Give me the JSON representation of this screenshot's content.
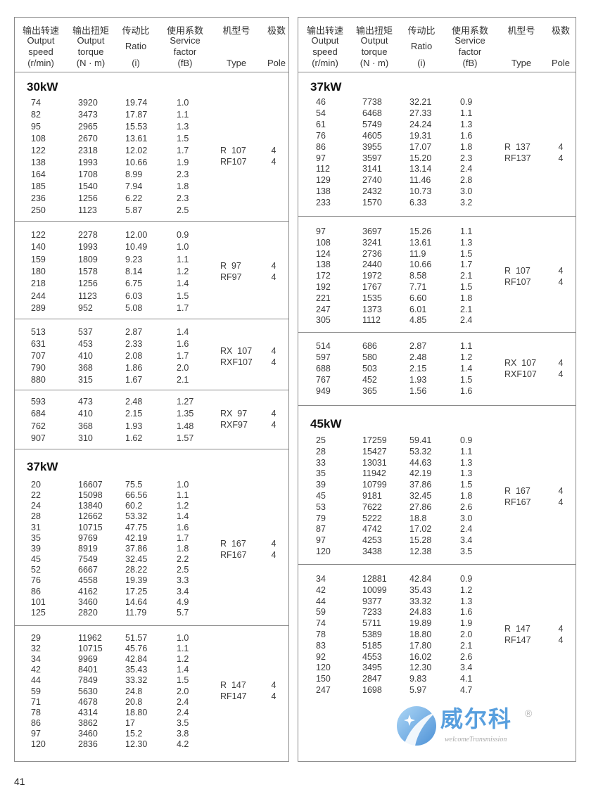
{
  "header": {
    "speed": {
      "cn": "输出转速",
      "en1": "Output",
      "en2": "speed",
      "unit": "(r/min)"
    },
    "torque": {
      "cn": "输出扭矩",
      "en1": "Output",
      "en2": "torque",
      "unit": "(N · m)"
    },
    "ratio": {
      "cn": "传动比",
      "en": "Ratio",
      "unit": "(i)"
    },
    "service": {
      "cn": "使用系数",
      "en1": "Service",
      "en2": "factor",
      "unit": "(fB)"
    },
    "type": {
      "cn": "机型号",
      "en": "Type"
    },
    "pole": {
      "cn": "极数",
      "en": "Pole"
    }
  },
  "panels": [
    {
      "blocks": [
        {
          "title": "30kW",
          "type": [
            "R  107",
            "RF107"
          ],
          "pole": [
            "4",
            "4"
          ],
          "rows": [
            [
              "74",
              "3920",
              "19.74",
              "1.0"
            ],
            [
              "82",
              "3473",
              "17.87",
              "1.1"
            ],
            [
              "95",
              "2965",
              "15.53",
              "1.3"
            ],
            [
              "108",
              "2670",
              "13.61",
              "1.5"
            ],
            [
              "122",
              "2318",
              "12.02",
              "1.7"
            ],
            [
              "138",
              "1993",
              "10.66",
              "1.9"
            ],
            [
              "164",
              "1708",
              "8.99",
              "2.3"
            ],
            [
              "185",
              "1540",
              "7.94",
              "1.8"
            ],
            [
              "236",
              "1256",
              "6.22",
              "2.3"
            ],
            [
              "250",
              "1123",
              "5.87",
              "2.5"
            ]
          ]
        },
        {
          "type": [
            "R  97",
            "RF97"
          ],
          "pole": [
            "4",
            "4"
          ],
          "rows": [
            [
              "122",
              "2278",
              "12.00",
              "0.9"
            ],
            [
              "140",
              "1993",
              "10.49",
              "1.0"
            ],
            [
              "159",
              "1809",
              "9.23",
              "1.1"
            ],
            [
              "180",
              "1578",
              "8.14",
              "1.2"
            ],
            [
              "218",
              "1256",
              "6.75",
              "1.4"
            ],
            [
              "244",
              "1123",
              "6.03",
              "1.5"
            ],
            [
              "289",
              "952",
              "5.08",
              "1.7"
            ]
          ]
        },
        {
          "type": [
            "RX  107",
            "RXF107"
          ],
          "pole": [
            "4",
            "4"
          ],
          "rows": [
            [
              "513",
              "537",
              "2.87",
              "1.4"
            ],
            [
              "631",
              "453",
              "2.33",
              "1.6"
            ],
            [
              "707",
              "410",
              "2.08",
              "1.7"
            ],
            [
              "790",
              "368",
              "1.86",
              "2.0"
            ],
            [
              "880",
              "315",
              "1.67",
              "2.1"
            ]
          ]
        },
        {
          "type": [
            "RX  97",
            "RXF97"
          ],
          "pole": [
            "4",
            "4"
          ],
          "rows": [
            [
              "593",
              "473",
              "2.48",
              "1.27"
            ],
            [
              "684",
              "410",
              "2.15",
              "1.35"
            ],
            [
              "762",
              "368",
              "1.93",
              "1.48"
            ],
            [
              "907",
              "310",
              "1.62",
              "1.57"
            ]
          ]
        },
        {
          "title": "37kW",
          "type": [
            "R  167",
            "RF167"
          ],
          "pole": [
            "4",
            "4"
          ],
          "rows": [
            [
              "20",
              "16607",
              "75.5",
              "1.0"
            ],
            [
              "22",
              "15098",
              "66.56",
              "1.1"
            ],
            [
              "24",
              "13840",
              "60.2",
              "1.2"
            ],
            [
              "28",
              "12662",
              "53.32",
              "1.4"
            ],
            [
              "31",
              "10715",
              "47.75",
              "1.6"
            ],
            [
              "35",
              "9769",
              "42.19",
              "1.7"
            ],
            [
              "39",
              "8919",
              "37.86",
              "1.8"
            ],
            [
              "45",
              "7549",
              "32.45",
              "2.2"
            ],
            [
              "52",
              "6667",
              "28.22",
              "2.5"
            ],
            [
              "76",
              "4558",
              "19.39",
              "3.3"
            ],
            [
              "86",
              "4162",
              "17.25",
              "3.4"
            ],
            [
              "101",
              "3460",
              "14.64",
              "4.9"
            ],
            [
              "125",
              "2820",
              "11.79",
              "5.7"
            ]
          ]
        },
        {
          "type": [
            "R  147",
            "RF147"
          ],
          "pole": [
            "4",
            "4"
          ],
          "rows": [
            [
              "29",
              "11962",
              "51.57",
              "1.0"
            ],
            [
              "32",
              "10715",
              "45.76",
              "1.1"
            ],
            [
              "34",
              "9969",
              "42.84",
              "1.2"
            ],
            [
              "42",
              "8401",
              "35.43",
              "1.4"
            ],
            [
              "44",
              "7849",
              "33.32",
              "1.5"
            ],
            [
              "59",
              "5630",
              "24.8",
              "2.0"
            ],
            [
              "71",
              "4678",
              "20.8",
              "2.4"
            ],
            [
              "78",
              "4314",
              "18.80",
              "2.4"
            ],
            [
              "86",
              "3862",
              "17",
              "3.5"
            ],
            [
              "97",
              "3460",
              "15.2",
              "3.8"
            ],
            [
              "120",
              "2836",
              "12.30",
              "4.2"
            ]
          ]
        }
      ]
    },
    {
      "blocks": [
        {
          "title": "37kW",
          "type": [
            "R  137",
            "RF137"
          ],
          "pole": [
            "4",
            "4"
          ],
          "rows": [
            [
              "46",
              "7738",
              "32.21",
              "0.9"
            ],
            [
              "54",
              "6468",
              "27.33",
              "1.1"
            ],
            [
              "61",
              "5749",
              "24.24",
              "1.3"
            ],
            [
              "76",
              "4605",
              "19.31",
              "1.6"
            ],
            [
              "86",
              "3955",
              "17.07",
              "1.8"
            ],
            [
              "97",
              "3597",
              "15.20",
              "2.3"
            ],
            [
              "112",
              "3141",
              "13.14",
              "2.4"
            ],
            [
              "129",
              "2740",
              "11.46",
              "2.8"
            ],
            [
              "138",
              "2432",
              "10.73",
              "3.0"
            ],
            [
              "233",
              "1570",
              "6.33",
              "3.2"
            ]
          ]
        },
        {
          "type": [
            "R  107",
            "RF107"
          ],
          "pole": [
            "4",
            "4"
          ],
          "rows": [
            [
              "97",
              "3697",
              "15.26",
              "1.1"
            ],
            [
              "108",
              "3241",
              "13.61",
              "1.3"
            ],
            [
              "124",
              "2736",
              "11.9",
              "1.5"
            ],
            [
              "138",
              "2440",
              "10.66",
              "1.7"
            ],
            [
              "172",
              "1972",
              "8.58",
              "2.1"
            ],
            [
              "192",
              "1767",
              "7.71",
              "1.5"
            ],
            [
              "221",
              "1535",
              "6.60",
              "1.8"
            ],
            [
              "247",
              "1373",
              "6.01",
              "2.1"
            ],
            [
              "305",
              "1112",
              "4.85",
              "2.4"
            ]
          ]
        },
        {
          "type": [
            "RX  107",
            "RXF107"
          ],
          "pole": [
            "4",
            "4"
          ],
          "rows": [
            [
              "514",
              "686",
              "2.87",
              "1.1"
            ],
            [
              "597",
              "580",
              "2.48",
              "1.2"
            ],
            [
              "688",
              "503",
              "2.15",
              "1.4"
            ],
            [
              "767",
              "452",
              "1.93",
              "1.5"
            ],
            [
              "949",
              "365",
              "1.56",
              "1.6"
            ]
          ]
        },
        {
          "title": "45kW",
          "type": [
            "R  167",
            "RF167"
          ],
          "pole": [
            "4",
            "4"
          ],
          "rows": [
            [
              "25",
              "17259",
              "59.41",
              "0.9"
            ],
            [
              "28",
              "15427",
              "53.32",
              "1.1"
            ],
            [
              "33",
              "13031",
              "44.63",
              "1.3"
            ],
            [
              "35",
              "11942",
              "42.19",
              "1.3"
            ],
            [
              "39",
              "10799",
              "37.86",
              "1.5"
            ],
            [
              "45",
              "9181",
              "32.45",
              "1.8"
            ],
            [
              "53",
              "7622",
              "27.86",
              "2.6"
            ],
            [
              "79",
              "5222",
              "18.8",
              "3.0"
            ],
            [
              "87",
              "4742",
              "17.02",
              "2.4"
            ],
            [
              "97",
              "4253",
              "15.28",
              "3.4"
            ],
            [
              "120",
              "3438",
              "12.38",
              "3.5"
            ]
          ]
        },
        {
          "type": [
            "R  147",
            "RF147"
          ],
          "pole": [
            "4",
            "4"
          ],
          "rows": [
            [
              "34",
              "12881",
              "42.84",
              "0.9"
            ],
            [
              "42",
              "10099",
              "35.43",
              "1.2"
            ],
            [
              "44",
              "9377",
              "33.32",
              "1.3"
            ],
            [
              "59",
              "7233",
              "24.83",
              "1.6"
            ],
            [
              "74",
              "5711",
              "19.89",
              "1.9"
            ],
            [
              "78",
              "5389",
              "18.80",
              "2.0"
            ],
            [
              "83",
              "5185",
              "17.80",
              "2.1"
            ],
            [
              "92",
              "4553",
              "16.02",
              "2.6"
            ],
            [
              "120",
              "3495",
              "12.30",
              "3.4"
            ],
            [
              "150",
              "2847",
              "9.83",
              "4.1"
            ],
            [
              "247",
              "1698",
              "5.97",
              "4.7"
            ]
          ]
        }
      ]
    }
  ],
  "watermark": {
    "brand_cn": "威尔科",
    "brand_en": "welcomeTransmission",
    "registered": "®",
    "color": "#3b8fd9"
  },
  "page_number": "41"
}
